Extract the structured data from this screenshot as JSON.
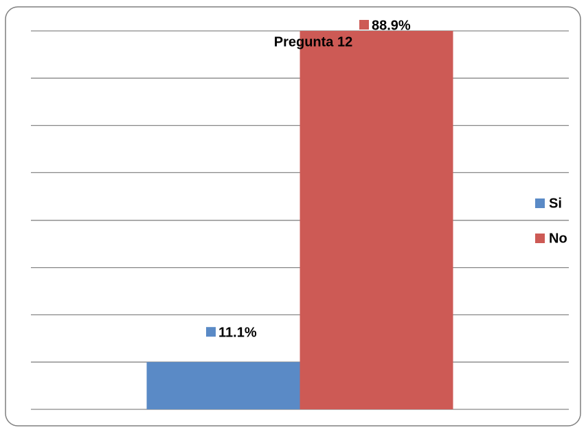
{
  "chart_data": {
    "type": "bar",
    "title": "Pregunta  12",
    "categories": [
      null
    ],
    "series": [
      {
        "name": "Si",
        "color": "#5a8ac6",
        "values": [
          11.1
        ],
        "value_labels": [
          "11.1%"
        ]
      },
      {
        "name": "No",
        "color": "#cd5a55",
        "values": [
          88.9
        ],
        "value_labels": [
          "88.9%"
        ]
      }
    ],
    "ylim": [
      0,
      88.9
    ],
    "yticks": [
      0,
      11.1,
      22.2,
      33.3,
      44.4,
      55.6,
      66.7,
      77.8,
      88.9
    ],
    "grid": true,
    "legend": "right"
  }
}
